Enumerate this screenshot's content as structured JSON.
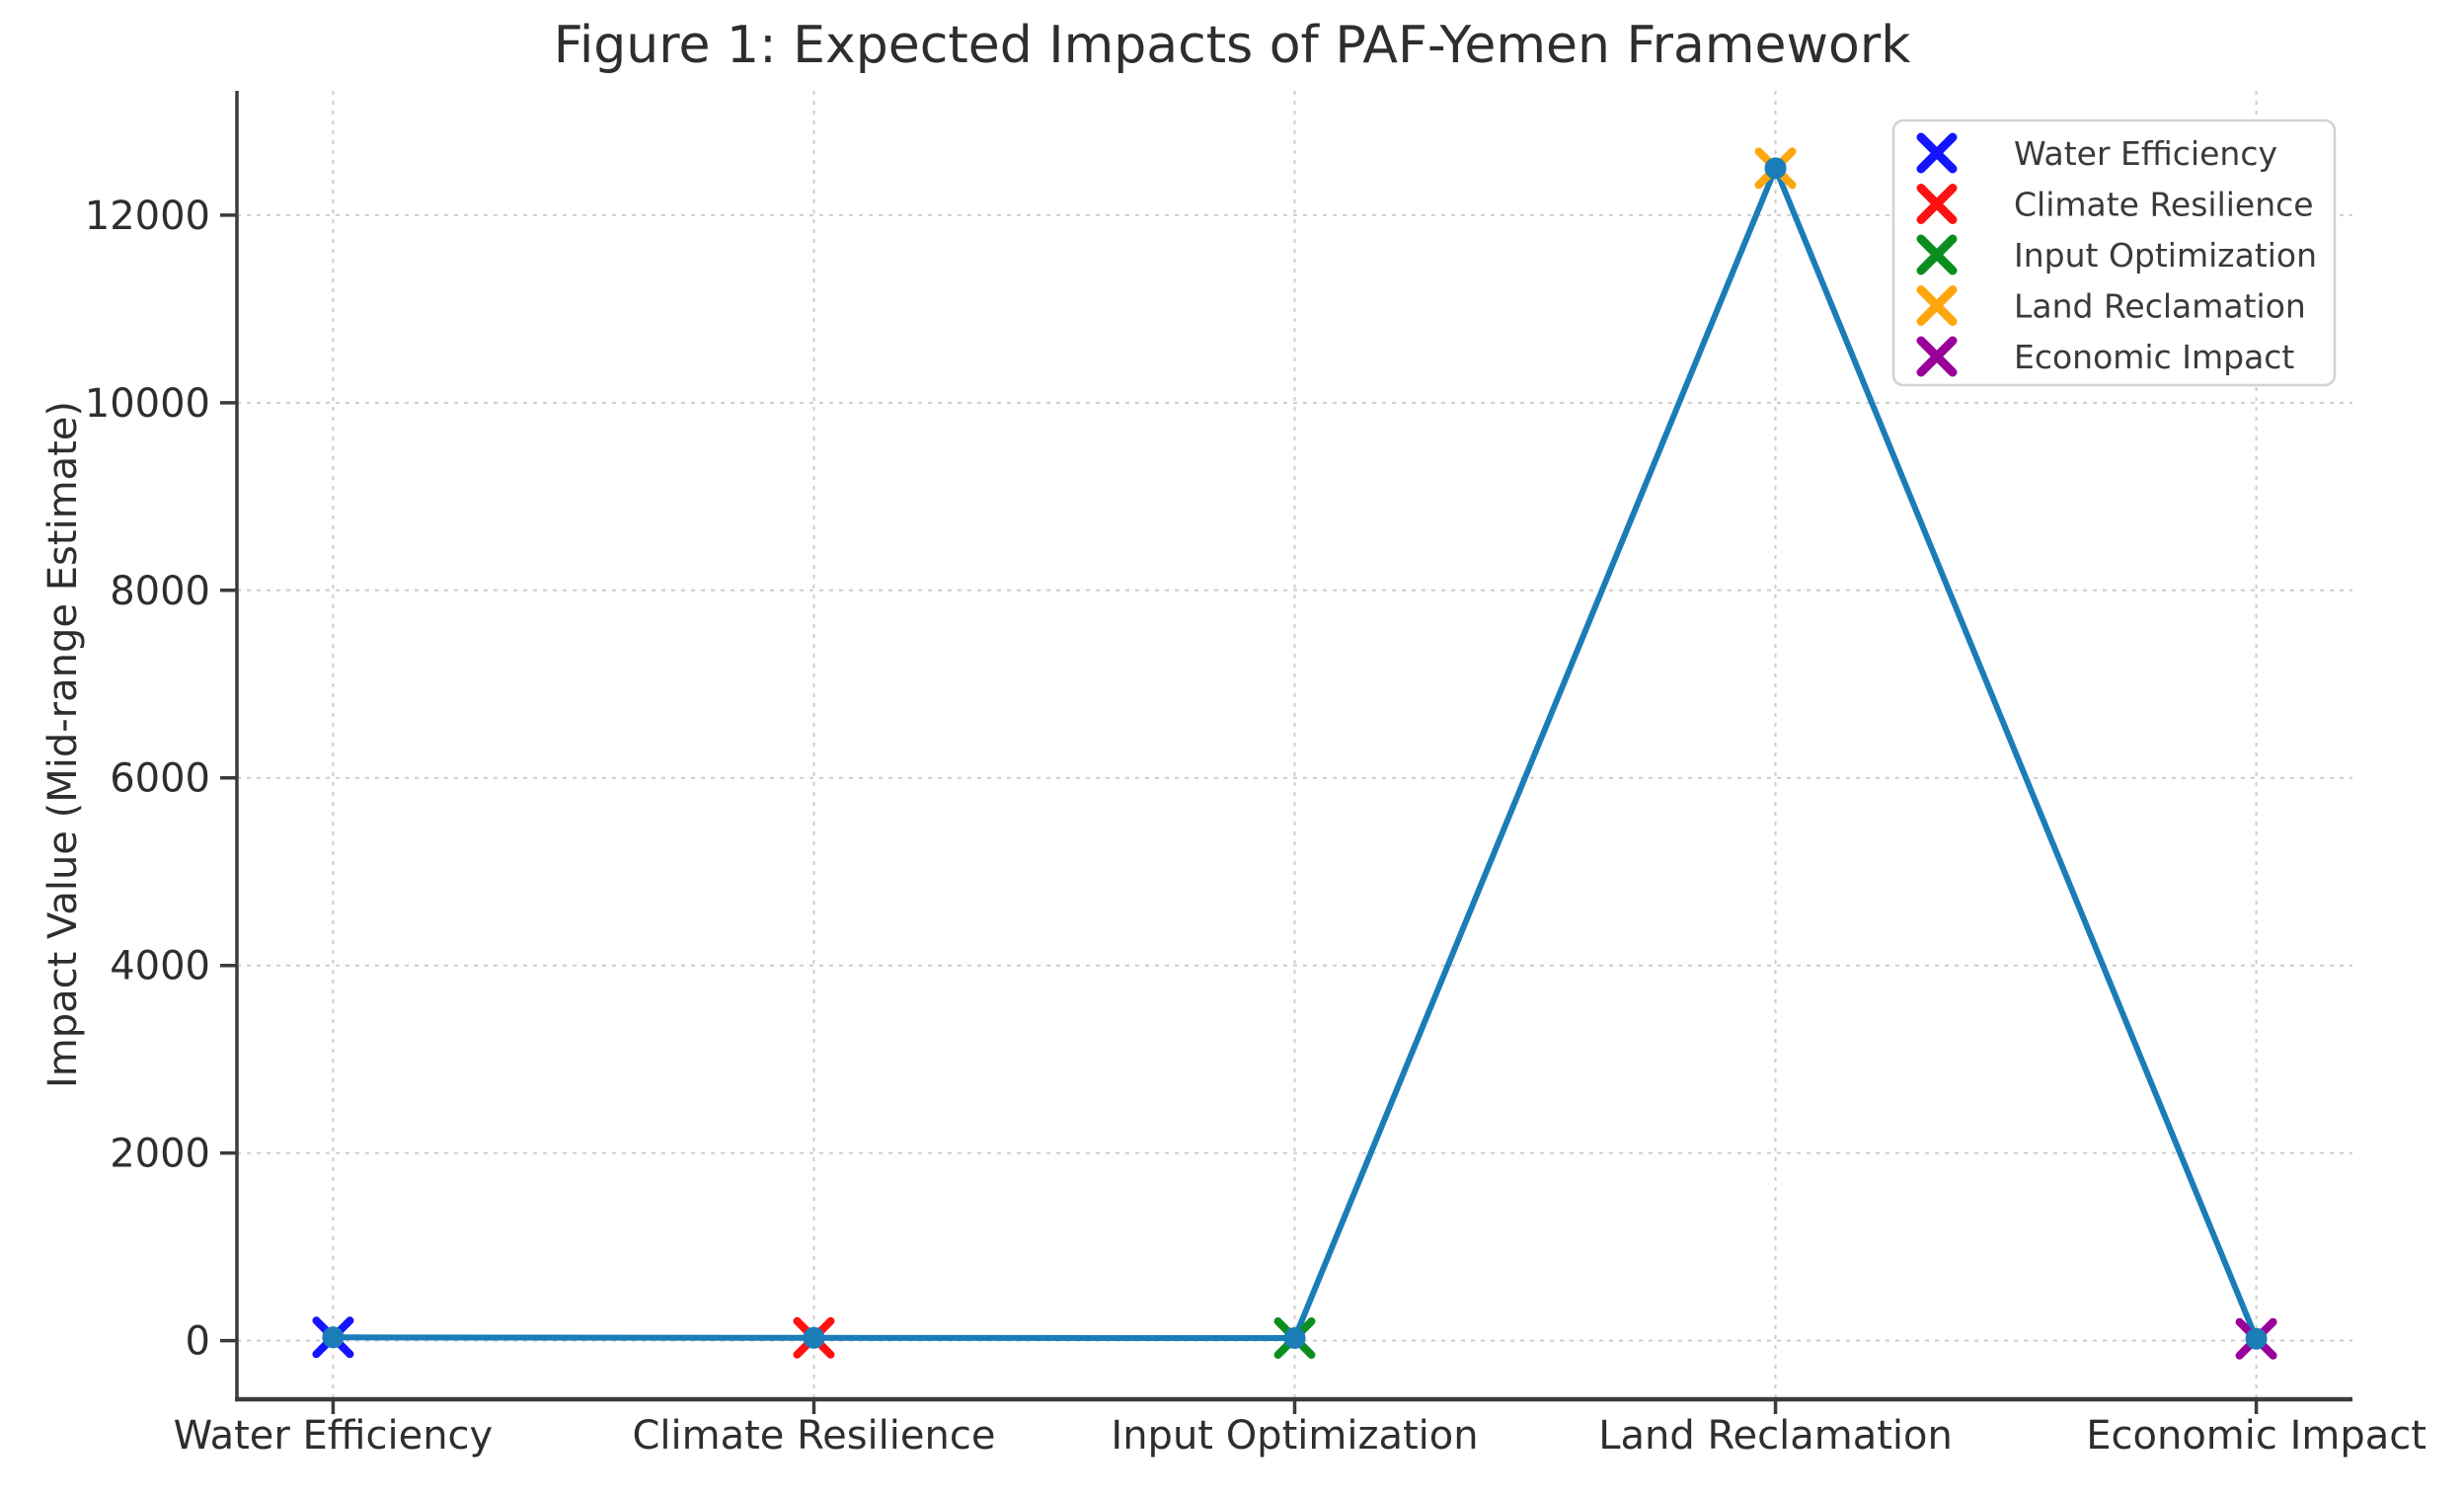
{
  "chart_data": {
    "type": "line",
    "title": "Figure 1: Expected Impacts of PAF-Yemen Framework",
    "xlabel": "",
    "ylabel": "Impact Value (Mid-range Estimate)",
    "categories": [
      "Water Efficiency",
      "Climate Resilience",
      "Input Optimization",
      "Land Reclamation",
      "Economic Impact"
    ],
    "values": [
      35,
      30,
      27.5,
      12500,
      20
    ],
    "line_color": "#1a7db8",
    "point_markers": [
      {
        "label": "Water Efficiency",
        "color": "#1414ff"
      },
      {
        "label": "Climate Resilience",
        "color": "#ff1111"
      },
      {
        "label": "Input Optimization",
        "color": "#0a8f1f"
      },
      {
        "label": "Land Reclamation",
        "color": "#ffa60d"
      },
      {
        "label": "Economic Impact",
        "color": "#990099"
      }
    ],
    "marker_style": "x over filled dot",
    "yticks": [
      0,
      2000,
      4000,
      6000,
      8000,
      10000,
      12000
    ],
    "ylim": [
      -625,
      13325
    ],
    "grid": true,
    "legend": {
      "position": "upper right",
      "entries": [
        "Water Efficiency",
        "Climate Resilience",
        "Input Optimization",
        "Land Reclamation",
        "Economic Impact"
      ]
    }
  }
}
